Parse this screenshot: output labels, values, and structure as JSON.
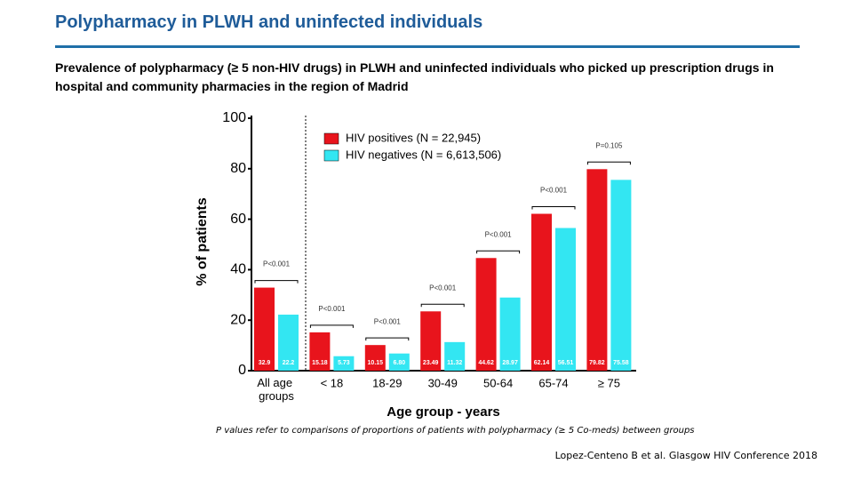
{
  "slide_title": "Polypharmacy in PLWH and uninfected individuals",
  "description": "Prevalence of polypharmacy (≥ 5 non-HIV drugs) in PLWH  and uninfected individuals who picked up prescription drugs in hospital and community pharmacies in the region of Madrid",
  "footnote": "P values refer to comparisons of proportions of patients with polypharmacy (≥ 5 Co-meds) between groups",
  "citation": "Lopez-Centeno B et al. Glasgow HIV Conference 2018",
  "chart_data": {
    "type": "bar",
    "x_label": "Age group - years",
    "y_label": "% of patients",
    "categories": [
      "All age groups",
      "< 18",
      "18-29",
      "30-49",
      "50-64",
      "65-74",
      "≥ 75"
    ],
    "series": [
      {
        "name": "HIV positives (N = 22,945)",
        "color": "#e8141c",
        "values": [
          32.9,
          15.18,
          10.15,
          23.49,
          44.62,
          62.14,
          79.82
        ],
        "value_labels": [
          "32.9",
          "15.18",
          "10.15",
          "23.49",
          "44.62",
          "62.14",
          "79.82"
        ]
      },
      {
        "name": "HIV negatives (N = 6,613,506)",
        "color": "#33e6f2",
        "values": [
          22.2,
          5.73,
          6.8,
          11.32,
          28.97,
          56.51,
          75.58
        ],
        "value_labels": [
          "22.2",
          "5.73",
          "6.80",
          "11.32",
          "28.97",
          "56.51",
          "75.58"
        ]
      }
    ],
    "annotations": [
      "P<0.001",
      "P<0.001",
      "P<0.001",
      "P<0.001",
      "P<0.001",
      "P<0.001",
      "P=0.105"
    ],
    "ylim": [
      0,
      100
    ],
    "yticks": [
      0,
      20,
      40,
      60,
      80,
      100
    ]
  }
}
